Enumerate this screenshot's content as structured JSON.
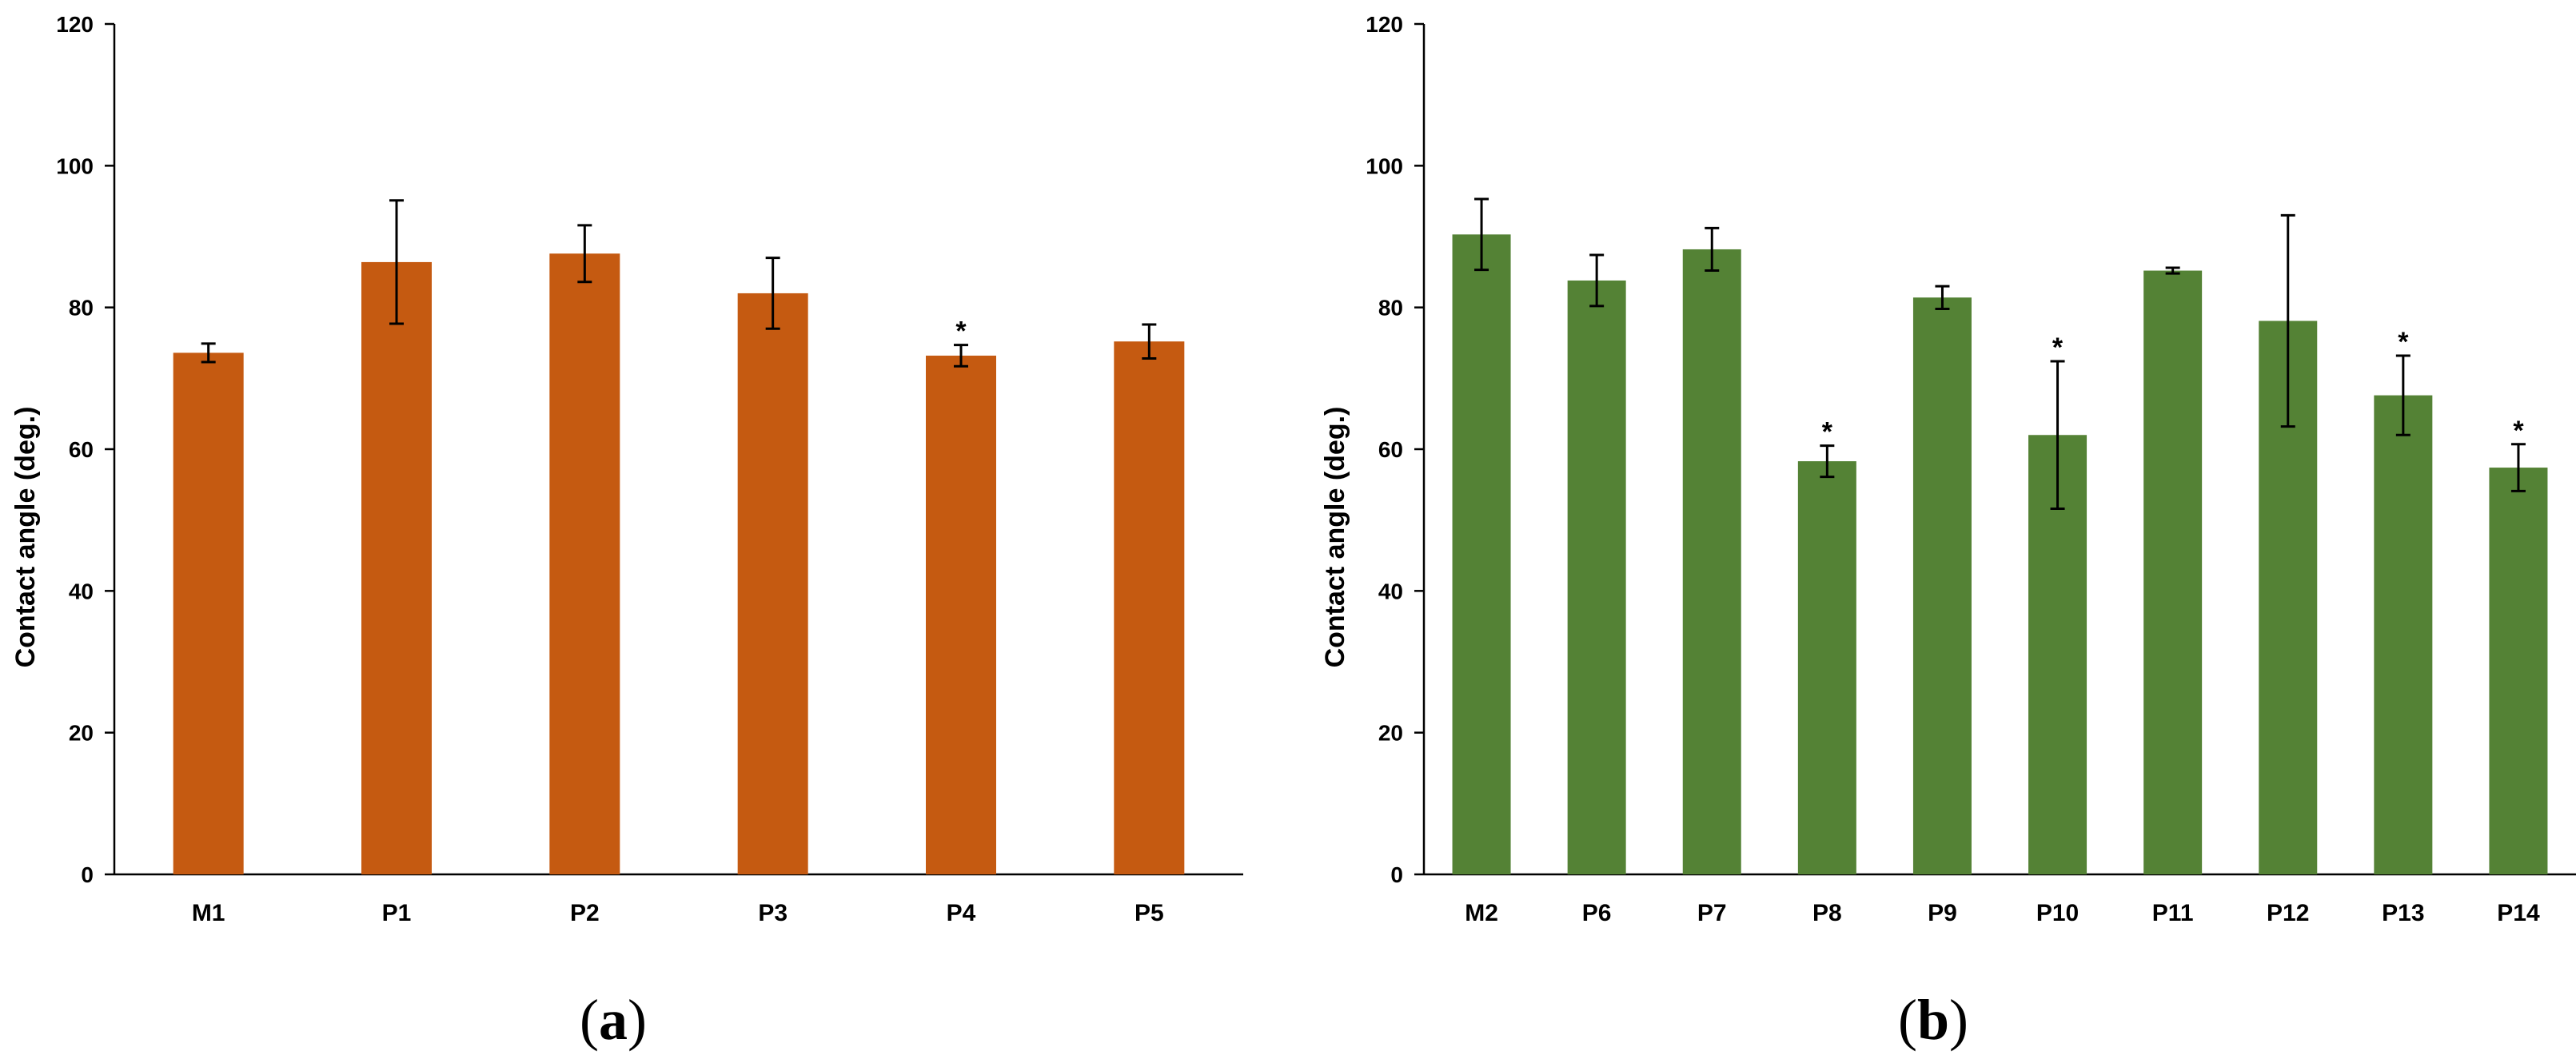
{
  "colors": {
    "panel_a_bar": "#C55A11",
    "panel_b_bar": "#548235",
    "axis": "#000000"
  },
  "chart_data": [
    {
      "type": "bar",
      "panel_label": "a",
      "title": "",
      "xlabel": "",
      "ylabel": "Contact angle (deg.)",
      "ylim": [
        0,
        120
      ],
      "yticks": [
        0,
        20,
        40,
        60,
        80,
        100,
        120
      ],
      "grid": false,
      "legend": "none",
      "categories": [
        "M1",
        "P1",
        "P2",
        "P3",
        "P4",
        "P5"
      ],
      "values": [
        73.6,
        86.4,
        87.6,
        82.0,
        73.2,
        75.2
      ],
      "errors": [
        1.3,
        8.7,
        4.0,
        5.0,
        1.5,
        2.4
      ],
      "significance": [
        "",
        "",
        "",
        "",
        "*",
        ""
      ]
    },
    {
      "type": "bar",
      "panel_label": "b",
      "title": "",
      "xlabel": "",
      "ylabel": "Contact angle (deg.)",
      "ylim": [
        0,
        120
      ],
      "yticks": [
        0,
        20,
        40,
        60,
        80,
        100,
        120
      ],
      "grid": false,
      "legend": "none",
      "categories": [
        "M2",
        "P6",
        "P7",
        "P8",
        "P9",
        "P10",
        "P11",
        "P12",
        "P13",
        "P14"
      ],
      "values": [
        90.3,
        83.8,
        88.2,
        58.3,
        81.4,
        62.0,
        85.2,
        78.1,
        67.6,
        57.4
      ],
      "errors": [
        5.0,
        3.6,
        3.0,
        2.2,
        1.6,
        10.4,
        0.4,
        14.9,
        5.6,
        3.3
      ],
      "significance": [
        "",
        "",
        "",
        "*",
        "",
        "*",
        "",
        "",
        "*",
        "*"
      ]
    }
  ]
}
